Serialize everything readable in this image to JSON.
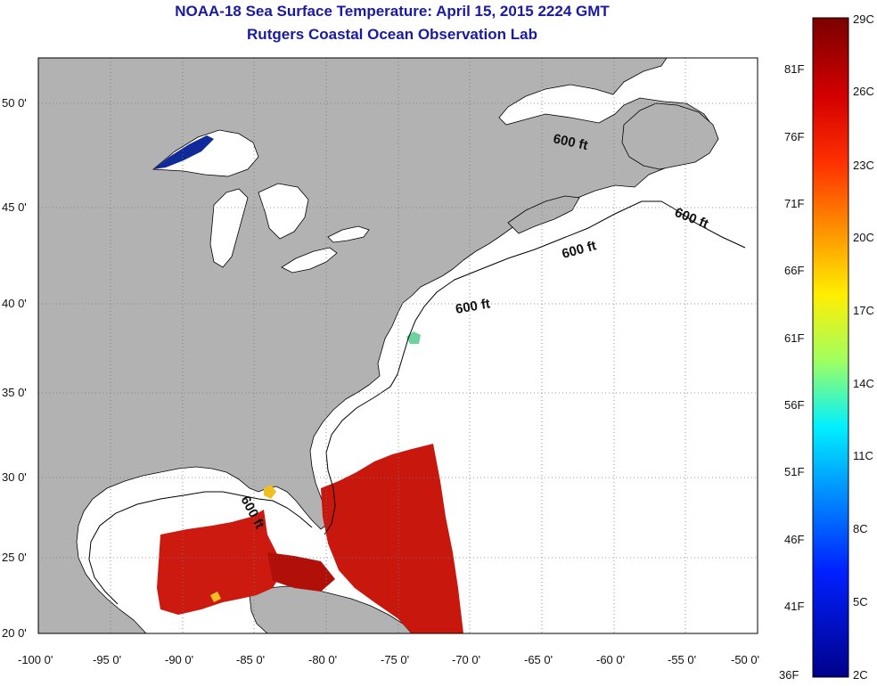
{
  "title": {
    "line1": "NOAA-18 Sea Surface Temperature:  April 15, 2015 2224 GMT",
    "line2": "Rutgers Coastal Ocean Observation Lab"
  },
  "map": {
    "lon_ticks": [
      "-100 0'",
      "-95 0'",
      "-90 0'",
      "-85 0'",
      "-80 0'",
      "-75 0'",
      "-70 0'",
      "-65 0'",
      "-60 0'",
      "-55 0'",
      "-50 0'"
    ],
    "lat_ticks": [
      "20 0'",
      "25 0'",
      "30 0'",
      "35 0'",
      "40 0'",
      "45 0'",
      "50 0'"
    ],
    "contour_label": "600 ft",
    "colors": {
      "land": "#b2b2b2",
      "no_data": "#ffffff",
      "lakes": "#102a9a",
      "warm_water": "#cc1a10"
    }
  },
  "colorbar": {
    "celsius": [
      "29C",
      "26C",
      "23C",
      "20C",
      "17C",
      "14C",
      "11C",
      "8C",
      "5C",
      "2C"
    ],
    "fahrenheit": [
      "81F",
      "76F",
      "71F",
      "66F",
      "61F",
      "56F",
      "51F",
      "46F",
      "41F",
      "36F"
    ],
    "colors": [
      "#7a0000",
      "#ff0000",
      "#ff8000",
      "#ffff00",
      "#80ff80",
      "#00ffff",
      "#0080ff",
      "#0000ff",
      "#00008f"
    ]
  }
}
